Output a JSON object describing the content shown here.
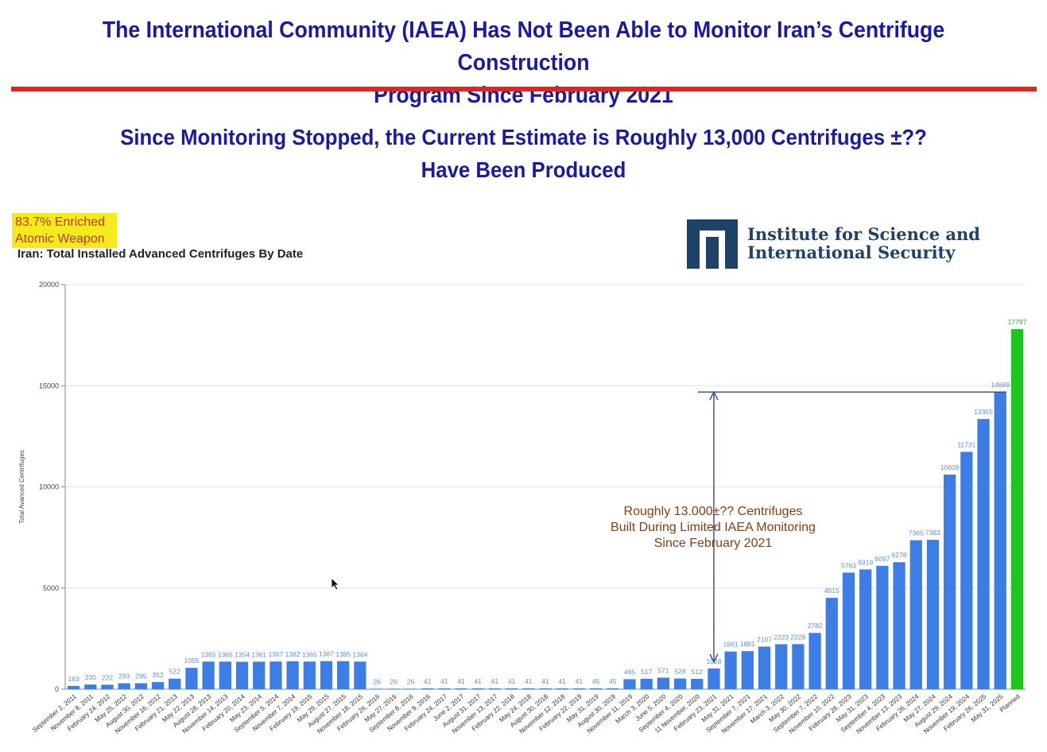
{
  "header": {
    "title_line1": "The International Community (IAEA) Has Not Been Able to Monitor Iran’s Centrifuge Construction",
    "title_line2": "Program Since February 2021",
    "subtitle_line1": "Since Monitoring Stopped, the Current Estimate is Roughly 13,000 Centrifuges ±??",
    "subtitle_line2": "Have Been Produced"
  },
  "badge": {
    "line1": "83.7% Enriched",
    "line2": "Atomic Weapon"
  },
  "logo": {
    "line1": "Institute for Science and",
    "line2": "International Security"
  },
  "colors": {
    "title": "#1a1aa8",
    "rule": "#e0261f",
    "bar": "#3d7de6",
    "planned_bar": "#1fc41f",
    "annotation": "#8a3c12",
    "badge_bg": "#f5ea1c"
  },
  "chart_data": {
    "type": "bar",
    "title": "Iran: Total Installed Advanced Centrifuges By Date",
    "ylabel": "Total Avanced Centrifuges",
    "xlabel": "",
    "ylim": [
      0,
      20000
    ],
    "yticks": [
      0,
      5000,
      10000,
      15000,
      20000
    ],
    "grid": true,
    "categories": [
      "September 2, 2011",
      "November 8, 2011",
      "February 24, 2012",
      "May 25, 2012",
      "August 30, 2012",
      "November 16, 2012",
      "February 21, 2013",
      "May 22, 2013",
      "August 28, 2013",
      "November 14, 2013",
      "February 20, 2014",
      "May 23, 2014",
      "September 5, 2014",
      "November 7, 2014",
      "February 19, 2015",
      "May 29, 2015",
      "August 27, 2015",
      "November 18, 2015",
      "February 26, 2016",
      "May 27, 2016",
      "September 8, 2016",
      "November 9, 2016",
      "February 24, 2017",
      "June 2, 2017",
      "August 31, 2017",
      "November 13, 2017",
      "February 22, 2018",
      "May 24, 2018",
      "August 30, 2018",
      "November 12, 2018",
      "February 22, 2019",
      "May 31, 2019",
      "August 30, 2019",
      "November 11, 2019",
      "March 3, 2020",
      "June 5, 2020",
      "September 4, 2020",
      "11 November, 2020",
      "February 23, 2021",
      "May 31, 2021",
      "September 7, 2021",
      "November 17, 2021",
      "March 3, 2022",
      "May 30, 2022",
      "September 7, 2022",
      "November 10, 2022",
      "February 28, 2023",
      "May 31, 2023",
      "September 4, 2023",
      "November 13, 2023",
      "February 26, 2024",
      "May 27, 2024",
      "August 29, 2024",
      "November 19, 2024",
      "February 26, 2025",
      "May 31, 2025",
      "Planned"
    ],
    "values": [
      163,
      230,
      222,
      293,
      295,
      352,
      522,
      1055,
      1365,
      1365,
      1354,
      1361,
      1367,
      1382,
      1365,
      1387,
      1385,
      1364,
      26,
      26,
      26,
      41,
      41,
      41,
      41,
      41,
      41,
      41,
      41,
      41,
      41,
      45,
      45,
      495,
      517,
      571,
      528,
      512,
      1028,
      1861,
      1881,
      2107,
      2223,
      2228,
      2782,
      4515,
      5763,
      5919,
      6097,
      6278,
      7365,
      7383,
      10609,
      11731,
      13355,
      14689,
      17797
    ],
    "value_labels": [
      "163",
      "230",
      "222",
      "293",
      "295",
      "352",
      "522",
      "1055",
      "1365",
      "1365",
      "1354",
      "1361",
      "1367",
      "1382",
      "1365",
      "1387",
      "1385",
      "1364",
      "26",
      "26",
      "26",
      "41",
      "41",
      "41",
      "41",
      "41",
      "41",
      "41",
      "41",
      "41",
      "41",
      "45",
      "45",
      "495",
      "517",
      "571",
      "528",
      "512",
      "1028",
      "1861",
      "1881",
      "2107",
      "2223",
      "2228",
      "2782",
      "4515",
      "5763",
      "5919",
      "6097",
      "6278",
      "7365",
      "7383",
      "10609",
      "11731",
      "13355",
      "14689",
      "17797"
    ],
    "annotation": {
      "line1": "Roughly 13.000±?? Centrifuges",
      "line2": "Built During Limited IAEA Monitoring",
      "line3": "Since February 2021",
      "arrow_from": "February 23, 2021",
      "arrow_top_value": 14689
    }
  }
}
